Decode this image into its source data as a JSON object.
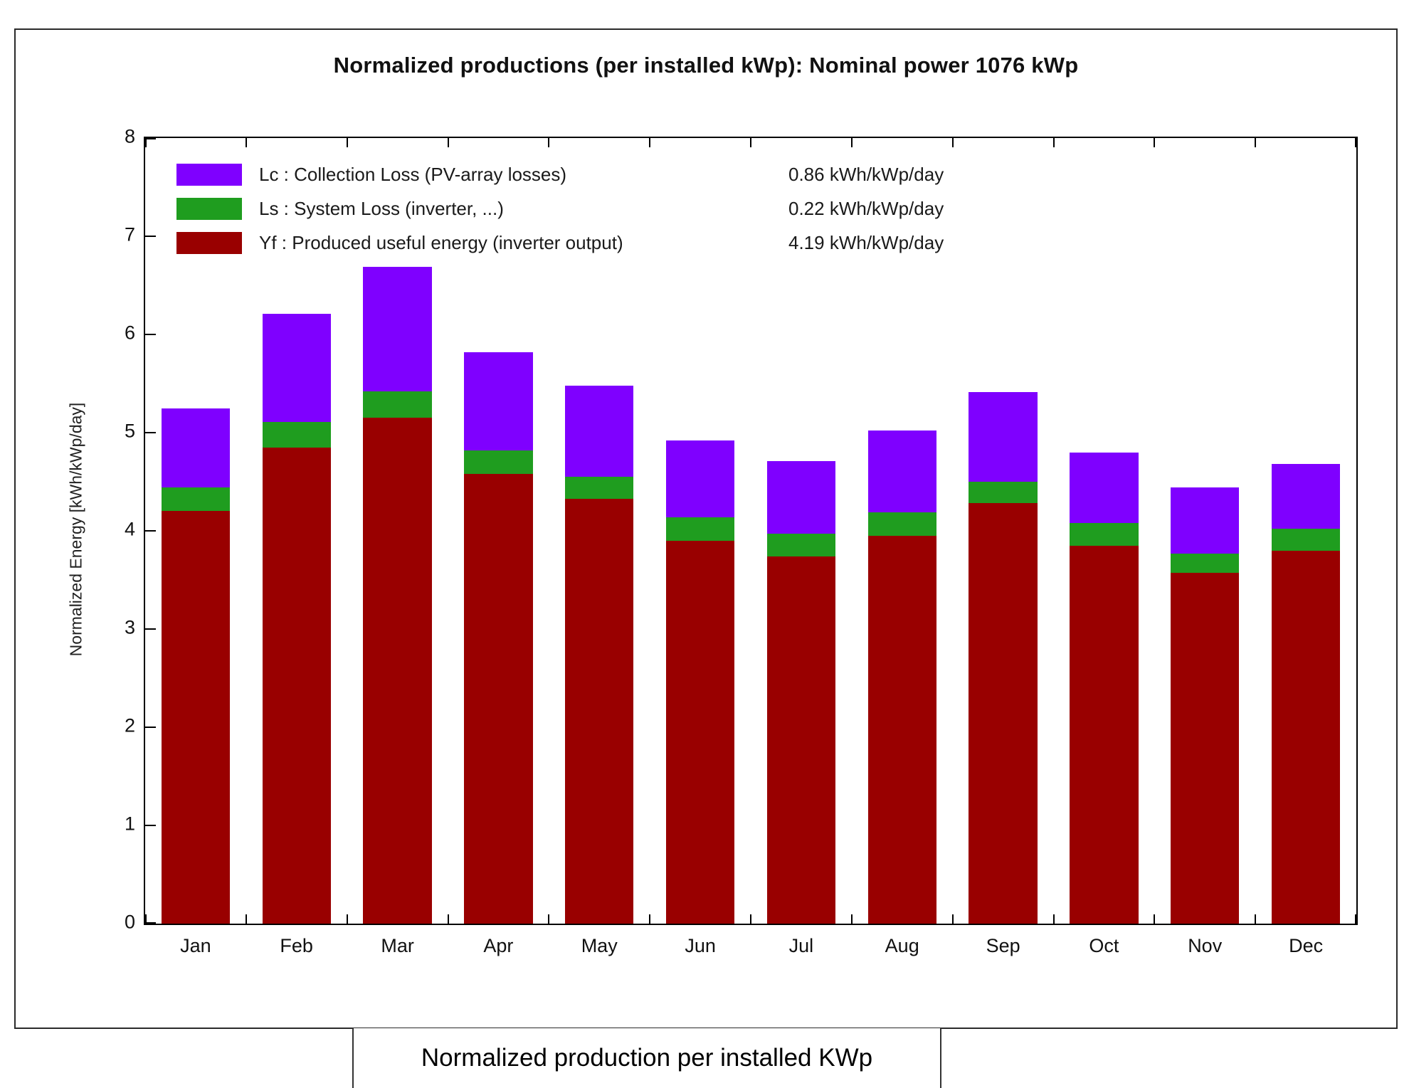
{
  "title": "Normalized productions (per installed kWp):  Nominal power 1076 kWp",
  "caption": "Normalized production per installed KWp",
  "legend": {
    "rows": [
      {
        "label": "Lc : Collection Loss (PV-array losses)",
        "value": "0.86 kWh/kWp/day",
        "color": "#7f00ff"
      },
      {
        "label": "Ls : System Loss  (inverter, ...)",
        "value": "0.22 kWh/kWp/day",
        "color": "#1f9d1f"
      },
      {
        "label": "Yf : Produced useful energy  (inverter output)",
        "value": "4.19 kWh/kWp/day",
        "color": "#990000"
      }
    ]
  },
  "chart_data": {
    "type": "bar",
    "stacked": true,
    "title": "Normalized productions (per installed kWp):  Nominal power 1076 kWp",
    "xlabel": "",
    "ylabel": "Normalized Energy  [kWh/kWp/day]",
    "ylim": [
      0,
      8
    ],
    "yticks": [
      0,
      1,
      2,
      3,
      4,
      5,
      6,
      7,
      8
    ],
    "grid": false,
    "legend_position": "top-left",
    "categories": [
      "Jan",
      "Feb",
      "Mar",
      "Apr",
      "May",
      "Jun",
      "Jul",
      "Aug",
      "Sep",
      "Oct",
      "Nov",
      "Dec"
    ],
    "series": [
      {
        "name": "Yf",
        "label": "Produced useful energy (inverter output)",
        "color": "#990000",
        "values": [
          4.2,
          4.85,
          5.15,
          4.58,
          4.33,
          3.9,
          3.74,
          3.95,
          4.28,
          3.85,
          3.57,
          3.8
        ]
      },
      {
        "name": "Ls",
        "label": "System Loss (inverter, ...)",
        "color": "#1f9d1f",
        "values": [
          0.24,
          0.26,
          0.27,
          0.24,
          0.22,
          0.24,
          0.23,
          0.24,
          0.22,
          0.23,
          0.2,
          0.22
        ]
      },
      {
        "name": "Lc",
        "label": "Collection Loss (PV-array losses)",
        "color": "#7f00ff",
        "values": [
          0.81,
          1.1,
          1.27,
          1.0,
          0.93,
          0.78,
          0.74,
          0.83,
          0.91,
          0.72,
          0.67,
          0.66
        ]
      }
    ],
    "summary_values": {
      "Lc": "0.86 kWh/kWp/day",
      "Ls": "0.22 kWh/kWp/day",
      "Yf": "4.19 kWh/kWp/day"
    }
  }
}
